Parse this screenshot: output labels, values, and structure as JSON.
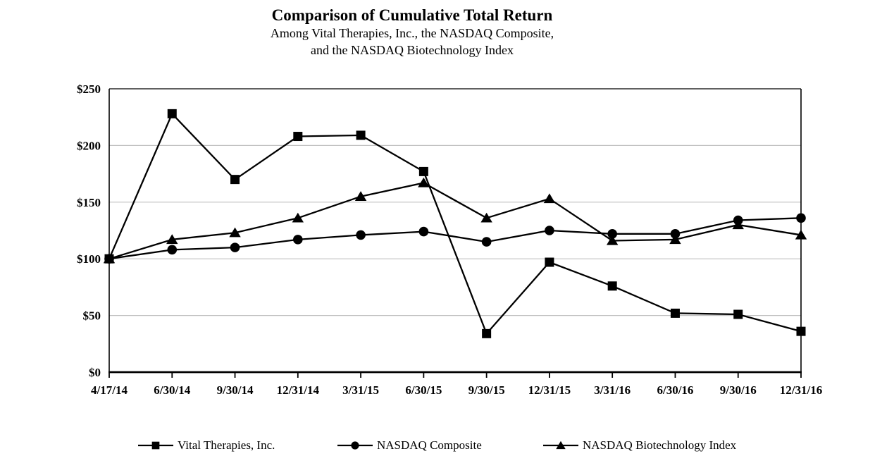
{
  "title": "Comparison of Cumulative Total Return",
  "subtitle": [
    "Among Vital Therapies, Inc., the NASDAQ Composite,",
    "and the NASDAQ Biotechnology Index"
  ],
  "chart_data": {
    "type": "line",
    "title": "Comparison of Cumulative Total Return",
    "subtitle_line1": "Among Vital Therapies, Inc., the NASDAQ Composite,",
    "subtitle_line2": "and the NASDAQ Biotechnology Index",
    "x_labels": [
      "4/17/14",
      "6/30/14",
      "9/30/14",
      "12/31/14",
      "3/31/15",
      "6/30/15",
      "9/30/15",
      "12/31/15",
      "3/31/16",
      "6/30/16",
      "9/30/16",
      "12/31/16"
    ],
    "series": [
      {
        "name": "Vital Therapies, Inc.",
        "marker": "square",
        "values": [
          100,
          228,
          170,
          208,
          209,
          177,
          34,
          97,
          76,
          52,
          51,
          36
        ]
      },
      {
        "name": "NASDAQ Composite",
        "marker": "circle",
        "values": [
          100,
          108,
          110,
          117,
          121,
          124,
          115,
          125,
          122,
          122,
          134,
          136
        ]
      },
      {
        "name": "NASDAQ Biotechnology Index",
        "marker": "triangle",
        "values": [
          100,
          117,
          123,
          136,
          155,
          167,
          136,
          153,
          116,
          117,
          130,
          121
        ]
      }
    ],
    "y_ticks": [
      {
        "value": 0,
        "label": "$0"
      },
      {
        "value": 50,
        "label": "$50"
      },
      {
        "value": 100,
        "label": "$100"
      },
      {
        "value": 150,
        "label": "$150"
      },
      {
        "value": 200,
        "label": "$200"
      },
      {
        "value": 250,
        "label": "$250"
      }
    ],
    "ylim": [
      0,
      250
    ],
    "grid": true,
    "legend_position": "bottom",
    "line_color": "#000000",
    "grid_color": "#c0c0c0",
    "background": "#ffffff",
    "draw_order": [
      2,
      1,
      0
    ]
  }
}
